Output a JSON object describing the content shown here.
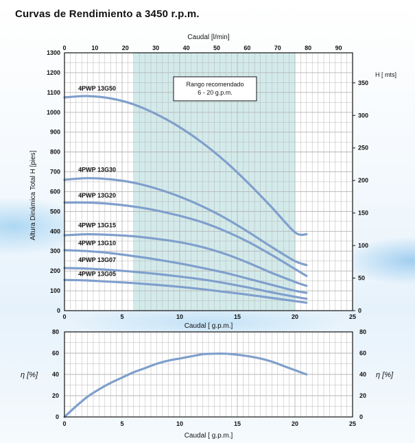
{
  "page": {
    "title": "Curvas de Rendimiento a 3450 r.p.m."
  },
  "chart_data": [
    {
      "type": "line",
      "name": "head-curves",
      "xlabel": "Caudal [ g.p.m.]",
      "x2label": "Caudal [l/min]",
      "ylabel": "Altura Dinámica Total H [pies]",
      "y2label": "H [ mts]",
      "xlim": [
        0,
        25
      ],
      "ylim": [
        0,
        1300
      ],
      "x2lim": [
        0,
        94.6
      ],
      "y2lim": [
        0,
        396.2
      ],
      "x_ticks": [
        0,
        5,
        10,
        15,
        20,
        25
      ],
      "y_ticks": [
        0,
        100,
        200,
        300,
        400,
        500,
        600,
        700,
        800,
        900,
        1000,
        1100,
        1200,
        1300
      ],
      "x2_ticks": [
        0,
        10,
        20,
        30,
        40,
        50,
        60,
        70,
        80,
        90
      ],
      "y2_ticks": [
        0,
        50,
        100,
        150,
        200,
        250,
        300,
        350
      ],
      "recommended_range": {
        "text": [
          "Rango recomendado",
          "6 - 20 g.p.m."
        ],
        "from": 6,
        "to": 20
      },
      "series": [
        {
          "name": "4PWP 13G50",
          "label_x": 1.2,
          "label_y": 1110,
          "x": [
            0,
            2,
            4,
            6,
            8,
            10,
            12,
            14,
            16,
            18,
            20,
            21
          ],
          "y": [
            1075,
            1082,
            1070,
            1040,
            990,
            925,
            845,
            750,
            640,
            520,
            395,
            385
          ]
        },
        {
          "name": "4PWP 13G30",
          "label_x": 1.2,
          "label_y": 700,
          "x": [
            0,
            2,
            4,
            6,
            8,
            10,
            12,
            14,
            16,
            18,
            20,
            21
          ],
          "y": [
            660,
            668,
            662,
            645,
            615,
            575,
            525,
            465,
            395,
            320,
            250,
            230
          ]
        },
        {
          "name": "4PWP 13G20",
          "label_x": 1.2,
          "label_y": 570,
          "x": [
            0,
            2,
            4,
            6,
            8,
            10,
            12,
            14,
            16,
            18,
            20,
            21
          ],
          "y": [
            545,
            545,
            538,
            525,
            505,
            478,
            445,
            400,
            345,
            280,
            210,
            175
          ]
        },
        {
          "name": "4PWP 13G15",
          "label_x": 1.2,
          "label_y": 420,
          "x": [
            0,
            2,
            4,
            6,
            8,
            10,
            12,
            14,
            16,
            18,
            20,
            21
          ],
          "y": [
            380,
            385,
            382,
            375,
            362,
            345,
            320,
            285,
            240,
            190,
            145,
            125
          ]
        },
        {
          "name": "4PWP 13G10",
          "label_x": 1.2,
          "label_y": 330,
          "x": [
            0,
            2,
            4,
            6,
            8,
            10,
            12,
            14,
            16,
            18,
            20,
            21
          ],
          "y": [
            305,
            300,
            290,
            275,
            258,
            238,
            215,
            190,
            160,
            130,
            100,
            90
          ]
        },
        {
          "name": "4PWP 13G07",
          "label_x": 1.2,
          "label_y": 245,
          "x": [
            0,
            2,
            4,
            6,
            8,
            10,
            12,
            14,
            16,
            18,
            20,
            21
          ],
          "y": [
            215,
            212,
            205,
            196,
            185,
            172,
            157,
            138,
            116,
            92,
            70,
            60
          ]
        },
        {
          "name": "4PWP 13G05",
          "label_x": 1.2,
          "label_y": 175,
          "x": [
            0,
            2,
            4,
            6,
            8,
            10,
            12,
            14,
            16,
            18,
            20,
            21
          ],
          "y": [
            155,
            152,
            146,
            139,
            130,
            120,
            108,
            94,
            80,
            64,
            48,
            40
          ]
        }
      ]
    },
    {
      "type": "line",
      "name": "efficiency-curve",
      "xlabel": "Caudal [ g.p.m.]",
      "ylabel": "η [%]",
      "y2label": "η [%]",
      "xlim": [
        0,
        25
      ],
      "ylim": [
        0,
        80
      ],
      "x_ticks": [
        0,
        5,
        10,
        15,
        20,
        25
      ],
      "y_ticks": [
        0,
        20,
        40,
        60,
        80
      ],
      "series": [
        {
          "x": [
            0,
            1,
            2,
            3,
            4,
            5,
            6,
            7,
            8,
            9,
            10,
            11,
            12,
            13,
            14,
            15,
            16,
            17,
            18,
            19,
            20,
            21
          ],
          "y": [
            0,
            10,
            19,
            26,
            32,
            37,
            42,
            46,
            50,
            53,
            55,
            57,
            59,
            59.5,
            59.5,
            58.5,
            57,
            55,
            52,
            48,
            44,
            40
          ]
        }
      ]
    }
  ],
  "colors": {
    "curve": "#7f9fcc",
    "band": "#d3eaea",
    "grid": "#b5b5b5",
    "axis": "#111111",
    "box_border": "#111111"
  }
}
